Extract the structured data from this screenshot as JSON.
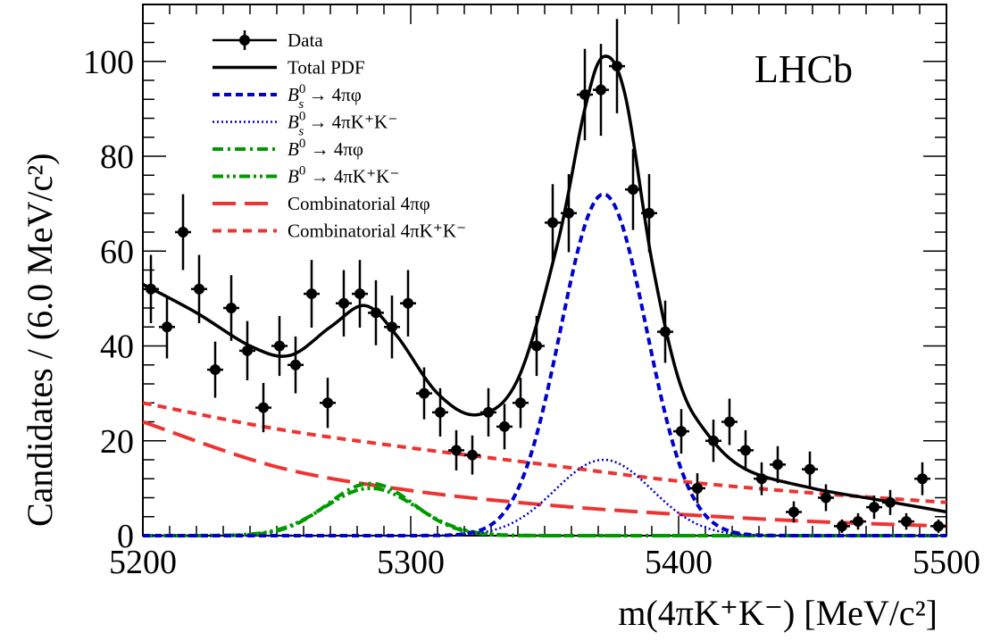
{
  "chart_data": {
    "type": "scatter",
    "xlabel": "m(4πK⁺K⁻) [MeV/c²]",
    "ylabel": "Candidates / (6.0 MeV/c²)",
    "annotation": "LHCb",
    "xlim": [
      5200,
      5500
    ],
    "ylim": [
      0,
      112
    ],
    "x_ticks": [
      5200,
      5300,
      5400,
      5500
    ],
    "y_ticks": [
      0,
      20,
      40,
      60,
      80,
      100
    ],
    "x_tick_labels": [
      "5200",
      "5300",
      "5400",
      "5500"
    ],
    "y_tick_labels": [
      "0",
      "20",
      "40",
      "60",
      "80",
      "100"
    ],
    "bin_width": 6.0,
    "legend_position": "top-left",
    "legend": [
      {
        "key": "data",
        "label": "Data",
        "color": "#000000",
        "style": "marker-errorbar"
      },
      {
        "key": "total",
        "label": "Total PDF",
        "color": "#000000",
        "style": "solid"
      },
      {
        "key": "bs_phi",
        "label": "B_s^0 → 4πφ",
        "color": "#0000cc",
        "style": "dashed"
      },
      {
        "key": "bs_kk",
        "label": "B_s^0 → 4πK⁺K⁻",
        "color": "#0000cc",
        "style": "dotted"
      },
      {
        "key": "b0_phi",
        "label": "B^0 → 4πφ",
        "color": "#009900",
        "style": "dashdot"
      },
      {
        "key": "b0_kk",
        "label": "B^0 → 4πK⁺K⁻",
        "color": "#009900",
        "style": "dashdotdot"
      },
      {
        "key": "comb_phi",
        "label": "Combinatorial 4πφ",
        "color": "#ee3333",
        "style": "longdash"
      },
      {
        "key": "comb_kk",
        "label": "Combinatorial 4πK⁺K⁻",
        "color": "#ee3333",
        "style": "shortdash"
      }
    ],
    "data_points": {
      "x": [
        5203,
        5209,
        5215,
        5221,
        5227,
        5233,
        5239,
        5245,
        5251,
        5257,
        5263,
        5269,
        5275,
        5281,
        5287,
        5293,
        5299,
        5305,
        5311,
        5317,
        5323,
        5329,
        5335,
        5341,
        5347,
        5353,
        5359,
        5365,
        5371,
        5377,
        5383,
        5389,
        5395,
        5401,
        5407,
        5413,
        5419,
        5425,
        5431,
        5437,
        5443,
        5449,
        5455,
        5461,
        5467,
        5473,
        5479,
        5485,
        5491,
        5497
      ],
      "y": [
        52,
        44,
        64,
        52,
        35,
        48,
        39,
        27,
        40,
        36,
        51,
        28,
        49,
        51,
        47,
        44,
        49,
        30,
        26,
        18,
        17,
        26,
        23,
        28,
        40,
        66,
        68,
        93,
        94,
        99,
        73,
        68,
        43,
        22,
        10,
        20,
        24,
        18,
        12,
        15,
        5,
        14,
        8,
        2,
        3,
        6,
        7,
        3,
        12,
        2
      ]
    },
    "total_pdf": {
      "x": [
        5200,
        5220,
        5240,
        5255,
        5270,
        5283,
        5295,
        5310,
        5325,
        5340,
        5355,
        5365,
        5372,
        5380,
        5390,
        5400,
        5410,
        5425,
        5450,
        5475,
        5500
      ],
      "y": [
        53,
        47,
        40,
        38,
        44,
        48.5,
        42,
        30,
        25.5,
        33,
        62,
        90,
        101,
        93,
        58,
        33,
        22,
        14,
        10,
        7.5,
        5
      ]
    },
    "comb_kk": {
      "x": [
        5200,
        5250,
        5300,
        5350,
        5400,
        5450,
        5500
      ],
      "y": [
        28,
        22.5,
        18.5,
        15,
        11.5,
        9,
        7
      ]
    },
    "comb_phi": {
      "x": [
        5200,
        5250,
        5300,
        5350,
        5400,
        5450,
        5500
      ],
      "y": [
        24,
        14.5,
        9.5,
        6.5,
        4.5,
        3,
        2
      ]
    },
    "signal_params": {
      "bs_phi": {
        "mean": 5372,
        "sigma": 16,
        "peak": 72
      },
      "bs_kk": {
        "mean": 5372,
        "sigma": 18,
        "peak": 16
      },
      "b0_phi": {
        "mean": 5285,
        "sigma": 16,
        "peak": 11
      },
      "b0_kk": {
        "mean": 5285,
        "sigma": 17,
        "peak": 10
      }
    }
  }
}
